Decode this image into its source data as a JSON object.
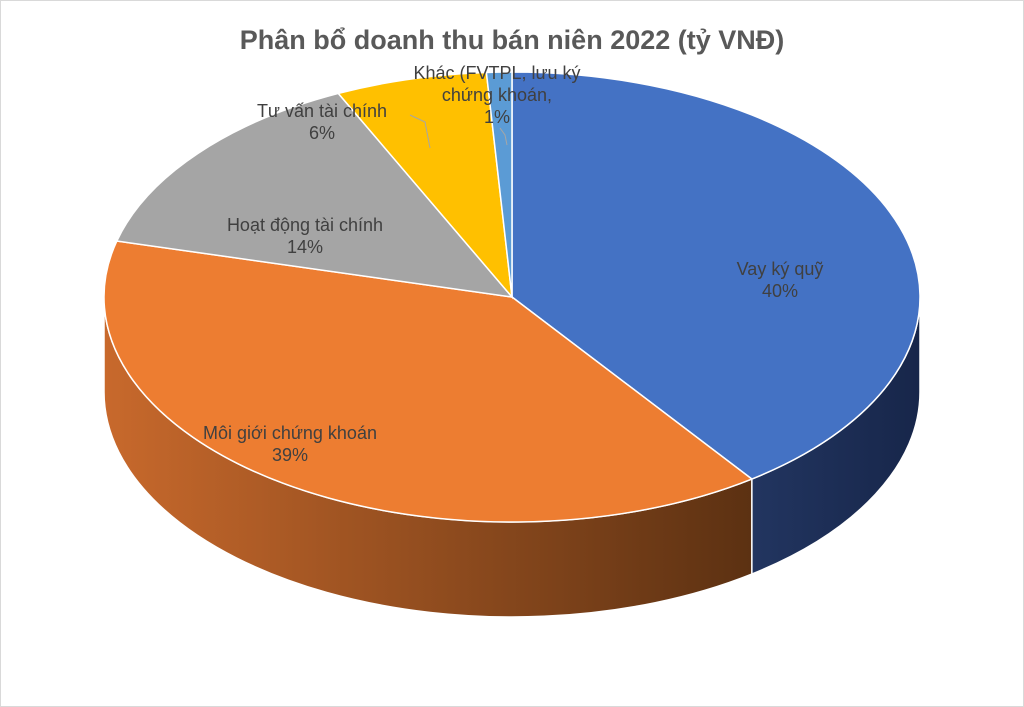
{
  "chart_data": {
    "type": "pie3d",
    "title": "Phân bổ doanh thu bán niên 2022 (tỷ VNĐ)",
    "categories": [
      "Vay ký quỹ",
      "Môi giới chứng khoán",
      "Hoạt động tài chính",
      "Tư vấn tài chính",
      "Khác (FVTPL, lưu ký chứng khoán,"
    ],
    "values": [
      40,
      39,
      14,
      6,
      1
    ],
    "value_labels": [
      "40%",
      "39%",
      "14%",
      "6%",
      "1%"
    ],
    "colors": [
      "#4472c4",
      "#ed7d31",
      "#a5a5a5",
      "#ffc000",
      "#5b9bd5"
    ]
  }
}
